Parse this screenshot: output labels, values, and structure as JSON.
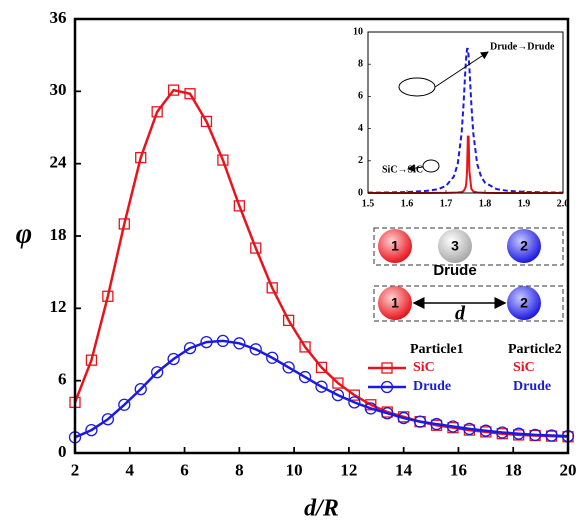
{
  "chart_data": [
    {
      "type": "line",
      "xlabel": "d/R",
      "ylabel": "φ",
      "x": [
        2,
        2.6,
        3.2,
        3.8,
        4.4,
        5,
        5.6,
        6.2,
        6.8,
        7.4,
        8,
        8.6,
        9.2,
        9.8,
        10.4,
        11,
        11.6,
        12.2,
        12.8,
        13.4,
        14,
        14.6,
        15.2,
        15.8,
        16.4,
        17,
        17.6,
        18.2,
        18.8,
        19.4,
        20
      ],
      "series": [
        {
          "name": "SiC",
          "color": "#e8141c",
          "marker": "square",
          "values": [
            4.2,
            7.7,
            13,
            19,
            24.5,
            28.3,
            30.1,
            29.8,
            27.5,
            24.3,
            20.5,
            17,
            13.7,
            11,
            8.8,
            7.1,
            5.8,
            4.8,
            4.0,
            3.4,
            3.0,
            2.6,
            2.3,
            2.1,
            1.9,
            1.75,
            1.6,
            1.5,
            1.45,
            1.4,
            1.35
          ]
        },
        {
          "name": "Drude",
          "color": "#1a1ae0",
          "marker": "circle",
          "values": [
            1.3,
            1.9,
            2.8,
            4.0,
            5.3,
            6.7,
            7.8,
            8.7,
            9.2,
            9.3,
            9.1,
            8.6,
            7.9,
            7.1,
            6.3,
            5.5,
            4.8,
            4.2,
            3.7,
            3.3,
            2.9,
            2.6,
            2.4,
            2.2,
            2.0,
            1.85,
            1.7,
            1.6,
            1.5,
            1.45,
            1.4
          ]
        }
      ],
      "xlim": [
        2,
        20
      ],
      "xticks": [
        2,
        4,
        6,
        8,
        10,
        12,
        14,
        16,
        18,
        20
      ],
      "ylim": [
        0,
        36
      ],
      "yticks": [
        0,
        6,
        12,
        18,
        24,
        30,
        36
      ],
      "legend": {
        "columns": [
          "Particle1",
          "Particle2"
        ],
        "second": [
          "SiC",
          "Drude"
        ]
      }
    },
    {
      "type": "line",
      "annotations": [
        "Drude→Drude",
        "SiC→SiC"
      ],
      "x": [
        1.5,
        1.55,
        1.6,
        1.65,
        1.68,
        1.7,
        1.72,
        1.73,
        1.74,
        1.745,
        1.75,
        1.752,
        1.754,
        1.756,
        1.758,
        1.76,
        1.765,
        1.77,
        1.78,
        1.79,
        1.8,
        1.83,
        1.86,
        1.9,
        1.95,
        2.0
      ],
      "series": [
        {
          "name": "Drude→Drude",
          "color": "#1a1ae0",
          "linestyle": "dashed",
          "values": [
            0.02,
            0.03,
            0.06,
            0.13,
            0.24,
            0.44,
            1.02,
            1.8,
            3.7,
            5.5,
            7.8,
            8.5,
            8.95,
            8.95,
            8.5,
            7.8,
            5.5,
            3.7,
            1.8,
            1.02,
            0.64,
            0.24,
            0.13,
            0.07,
            0.04,
            0.02
          ]
        },
        {
          "name": "SiC→SiC",
          "color": "#e8141c",
          "linestyle": "solid",
          "values": [
            0,
            0,
            0,
            0,
            0.01,
            0.01,
            0.02,
            0.03,
            0.06,
            0.12,
            0.33,
            0.6,
            1.35,
            3.5,
            3.5,
            1.35,
            0.26,
            0.1,
            0.03,
            0.02,
            0.01,
            0,
            0,
            0,
            0,
            0
          ]
        }
      ],
      "xlim": [
        1.5,
        2.0
      ],
      "xticks": [
        1.5,
        1.6,
        1.7,
        1.8,
        1.9,
        {
          "value": 2.0,
          "label": "2.0"
        }
      ],
      "ylim": [
        0,
        10
      ],
      "yticks": [
        0,
        2,
        4,
        6,
        8,
        10
      ]
    }
  ],
  "schematic": {
    "top": [
      "1",
      "3",
      "2"
    ],
    "top_label": "Drude",
    "bottom": [
      "1",
      "2"
    ],
    "bottom_label": "d"
  }
}
